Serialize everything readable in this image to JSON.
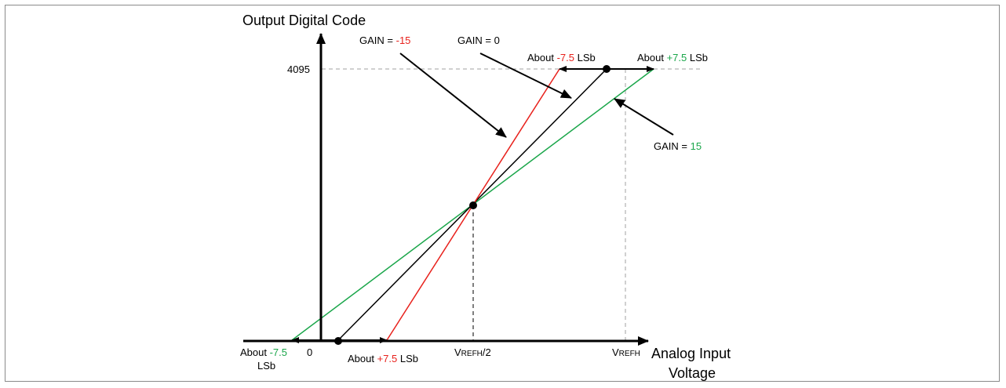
{
  "y_axis": {
    "title": "Output Digital Code",
    "tick_4095": "4095"
  },
  "x_axis": {
    "title_line1": "Analog Input",
    "title_line2": "Voltage",
    "tick_0": "0",
    "tick_half": {
      "main": "V",
      "sub": "REFH",
      "suffix": "/2"
    },
    "tick_full": {
      "main": "V",
      "sub": "REFH"
    }
  },
  "annotations": {
    "gain_neg": {
      "prefix": "GAIN = ",
      "value": "-15"
    },
    "gain_zero": {
      "text": "GAIN = 0"
    },
    "gain_pos": {
      "prefix": "GAIN = ",
      "value": "15"
    },
    "top_left": {
      "prefix": "About ",
      "value": "-7.5",
      "suffix": " LSb"
    },
    "top_right": {
      "prefix": "About ",
      "value": "+7.5",
      "suffix": " LSb"
    },
    "bottom_left": {
      "prefix": "About ",
      "value": "-7.5",
      "line2": "LSb"
    },
    "bottom_right": {
      "prefix": "About ",
      "value": "+7.5",
      "suffix": " LSb"
    }
  },
  "colors": {
    "gain_neg": "#e8211c",
    "gain_zero": "#000000",
    "gain_pos": "#1aa64a",
    "guide": "#a0a0a0",
    "axis": "#000000"
  }
}
